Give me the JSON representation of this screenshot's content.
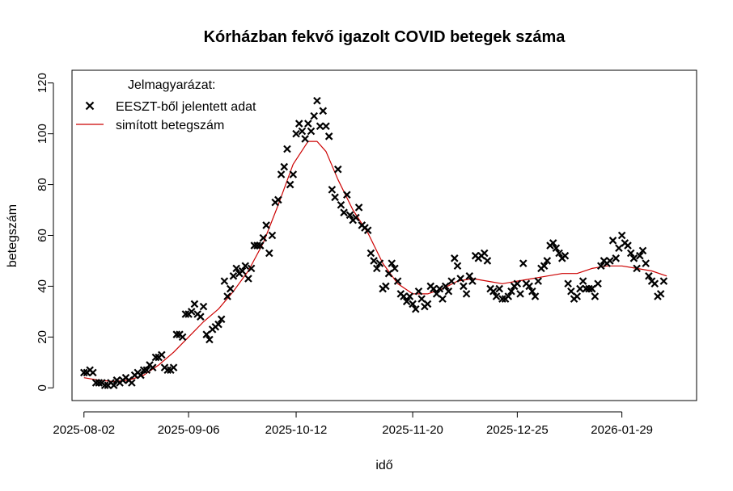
{
  "chart_data": {
    "type": "scatter",
    "title": "Kórházban fekvő igazolt COVID betegek száma",
    "xlabel": "idő",
    "ylabel": "betegszám",
    "x_type": "date",
    "xlim": [
      "2025-07-29",
      "2026-02-23"
    ],
    "ylim": [
      -5,
      125
    ],
    "y_ticks": [
      0,
      20,
      40,
      60,
      80,
      100,
      120
    ],
    "x_ticks": [
      "2025-08-02",
      "2025-09-06",
      "2025-10-12",
      "2025-11-20",
      "2025-12-25",
      "2026-01-29"
    ],
    "grid": false,
    "legend": {
      "title": "Jelmagyarázat:",
      "position": "top-left",
      "entries": [
        {
          "label": "EESZT-ből jelentett adat",
          "marker": "x",
          "color": "#000000"
        },
        {
          "label": "simított betegszám",
          "marker": "line",
          "color": "#cc0000"
        }
      ]
    },
    "series": [
      {
        "name": "EESZT-ből jelentett adat",
        "kind": "points",
        "color": "#000000",
        "marker": "x",
        "points": [
          [
            "2025-08-02",
            6
          ],
          [
            "2025-08-03",
            6
          ],
          [
            "2025-08-04",
            7
          ],
          [
            "2025-08-05",
            6
          ],
          [
            "2025-08-06",
            2
          ],
          [
            "2025-08-07",
            2
          ],
          [
            "2025-08-08",
            2
          ],
          [
            "2025-08-09",
            1
          ],
          [
            "2025-08-10",
            1
          ],
          [
            "2025-08-11",
            2
          ],
          [
            "2025-08-12",
            1
          ],
          [
            "2025-08-13",
            3
          ],
          [
            "2025-08-14",
            2
          ],
          [
            "2025-08-15",
            3
          ],
          [
            "2025-08-16",
            4
          ],
          [
            "2025-08-17",
            3
          ],
          [
            "2025-08-18",
            2
          ],
          [
            "2025-08-19",
            5
          ],
          [
            "2025-08-20",
            6
          ],
          [
            "2025-08-21",
            5
          ],
          [
            "2025-08-22",
            7
          ],
          [
            "2025-08-23",
            7
          ],
          [
            "2025-08-24",
            9
          ],
          [
            "2025-08-25",
            8
          ],
          [
            "2025-08-26",
            12
          ],
          [
            "2025-08-27",
            12
          ],
          [
            "2025-08-28",
            13
          ],
          [
            "2025-08-29",
            8
          ],
          [
            "2025-08-30",
            7
          ],
          [
            "2025-08-31",
            7
          ],
          [
            "2025-09-01",
            8
          ],
          [
            "2025-09-02",
            21
          ],
          [
            "2025-09-03",
            21
          ],
          [
            "2025-09-04",
            20
          ],
          [
            "2025-09-05",
            29
          ],
          [
            "2025-09-06",
            29
          ],
          [
            "2025-09-07",
            30
          ],
          [
            "2025-09-08",
            33
          ],
          [
            "2025-09-09",
            29
          ],
          [
            "2025-09-10",
            28
          ],
          [
            "2025-09-11",
            32
          ],
          [
            "2025-09-12",
            21
          ],
          [
            "2025-09-13",
            19
          ],
          [
            "2025-09-14",
            23
          ],
          [
            "2025-09-15",
            24
          ],
          [
            "2025-09-16",
            25
          ],
          [
            "2025-09-17",
            27
          ],
          [
            "2025-09-18",
            42
          ],
          [
            "2025-09-19",
            36
          ],
          [
            "2025-09-20",
            39
          ],
          [
            "2025-09-21",
            44
          ],
          [
            "2025-09-22",
            47
          ],
          [
            "2025-09-23",
            45
          ],
          [
            "2025-09-24",
            46
          ],
          [
            "2025-09-25",
            48
          ],
          [
            "2025-09-26",
            43
          ],
          [
            "2025-09-27",
            47
          ],
          [
            "2025-09-28",
            56
          ],
          [
            "2025-09-29",
            56
          ],
          [
            "2025-09-30",
            56
          ],
          [
            "2025-10-01",
            59
          ],
          [
            "2025-10-02",
            64
          ],
          [
            "2025-10-03",
            53
          ],
          [
            "2025-10-04",
            60
          ],
          [
            "2025-10-05",
            73
          ],
          [
            "2025-10-06",
            74
          ],
          [
            "2025-10-07",
            84
          ],
          [
            "2025-10-08",
            87
          ],
          [
            "2025-10-09",
            94
          ],
          [
            "2025-10-10",
            80
          ],
          [
            "2025-10-11",
            84
          ],
          [
            "2025-10-12",
            100
          ],
          [
            "2025-10-13",
            104
          ],
          [
            "2025-10-14",
            101
          ],
          [
            "2025-10-15",
            98
          ],
          [
            "2025-10-16",
            104
          ],
          [
            "2025-10-17",
            101
          ],
          [
            "2025-10-18",
            107
          ],
          [
            "2025-10-19",
            113
          ],
          [
            "2025-10-20",
            103
          ],
          [
            "2025-10-21",
            109
          ],
          [
            "2025-10-22",
            103
          ],
          [
            "2025-10-23",
            99
          ],
          [
            "2025-10-24",
            78
          ],
          [
            "2025-10-25",
            75
          ],
          [
            "2025-10-26",
            86
          ],
          [
            "2025-10-27",
            72
          ],
          [
            "2025-10-28",
            69
          ],
          [
            "2025-10-29",
            76
          ],
          [
            "2025-10-30",
            68
          ],
          [
            "2025-10-31",
            66
          ],
          [
            "2025-11-01",
            67
          ],
          [
            "2025-11-02",
            71
          ],
          [
            "2025-11-03",
            64
          ],
          [
            "2025-11-04",
            63
          ],
          [
            "2025-11-05",
            62
          ],
          [
            "2025-11-06",
            53
          ],
          [
            "2025-11-07",
            50
          ],
          [
            "2025-11-08",
            47
          ],
          [
            "2025-11-09",
            49
          ],
          [
            "2025-11-10",
            39
          ],
          [
            "2025-11-11",
            40
          ],
          [
            "2025-11-12",
            45
          ],
          [
            "2025-11-13",
            49
          ],
          [
            "2025-11-14",
            47
          ],
          [
            "2025-11-15",
            42
          ],
          [
            "2025-11-16",
            37
          ],
          [
            "2025-11-17",
            36
          ],
          [
            "2025-11-18",
            34
          ],
          [
            "2025-11-19",
            36
          ],
          [
            "2025-11-20",
            33
          ],
          [
            "2025-11-21",
            31
          ],
          [
            "2025-11-22",
            38
          ],
          [
            "2025-11-23",
            35
          ],
          [
            "2025-11-24",
            32
          ],
          [
            "2025-11-25",
            33
          ],
          [
            "2025-11-26",
            40
          ],
          [
            "2025-11-27",
            39
          ],
          [
            "2025-11-28",
            37
          ],
          [
            "2025-11-29",
            39
          ],
          [
            "2025-11-30",
            35
          ],
          [
            "2025-12-01",
            40
          ],
          [
            "2025-12-02",
            38
          ],
          [
            "2025-12-03",
            42
          ],
          [
            "2025-12-04",
            51
          ],
          [
            "2025-12-05",
            48
          ],
          [
            "2025-12-06",
            43
          ],
          [
            "2025-12-07",
            40
          ],
          [
            "2025-12-08",
            37
          ],
          [
            "2025-12-09",
            44
          ],
          [
            "2025-12-10",
            42
          ],
          [
            "2025-12-11",
            52
          ],
          [
            "2025-12-12",
            51
          ],
          [
            "2025-12-13",
            52
          ],
          [
            "2025-12-14",
            53
          ],
          [
            "2025-12-15",
            50
          ],
          [
            "2025-12-16",
            39
          ],
          [
            "2025-12-17",
            38
          ],
          [
            "2025-12-18",
            36
          ],
          [
            "2025-12-19",
            39
          ],
          [
            "2025-12-20",
            35
          ],
          [
            "2025-12-21",
            35
          ],
          [
            "2025-12-22",
            36
          ],
          [
            "2025-12-23",
            38
          ],
          [
            "2025-12-24",
            40
          ],
          [
            "2025-12-25",
            41
          ],
          [
            "2025-12-26",
            37
          ],
          [
            "2025-12-27",
            49
          ],
          [
            "2025-12-28",
            41
          ],
          [
            "2025-12-29",
            40
          ],
          [
            "2025-12-30",
            38
          ],
          [
            "2025-12-31",
            36
          ],
          [
            "2026-01-01",
            42
          ],
          [
            "2026-01-02",
            47
          ],
          [
            "2026-01-03",
            48
          ],
          [
            "2026-01-04",
            50
          ],
          [
            "2026-01-05",
            56
          ],
          [
            "2026-01-06",
            57
          ],
          [
            "2026-01-07",
            55
          ],
          [
            "2026-01-08",
            53
          ],
          [
            "2026-01-09",
            51
          ],
          [
            "2026-01-10",
            52
          ],
          [
            "2026-01-11",
            41
          ],
          [
            "2026-01-12",
            38
          ],
          [
            "2026-01-13",
            35
          ],
          [
            "2026-01-14",
            36
          ],
          [
            "2026-01-15",
            39
          ],
          [
            "2026-01-16",
            42
          ],
          [
            "2026-01-17",
            39
          ],
          [
            "2026-01-18",
            39
          ],
          [
            "2026-01-19",
            39
          ],
          [
            "2026-01-20",
            36
          ],
          [
            "2026-01-21",
            41
          ],
          [
            "2026-01-22",
            48
          ],
          [
            "2026-01-23",
            50
          ],
          [
            "2026-01-24",
            49
          ],
          [
            "2026-01-25",
            50
          ],
          [
            "2026-01-26",
            58
          ],
          [
            "2026-01-27",
            51
          ],
          [
            "2026-01-28",
            55
          ],
          [
            "2026-01-29",
            60
          ],
          [
            "2026-01-30",
            57
          ],
          [
            "2026-01-31",
            56
          ],
          [
            "2026-02-01",
            53
          ],
          [
            "2026-02-02",
            51
          ],
          [
            "2026-02-03",
            47
          ],
          [
            "2026-02-04",
            52
          ],
          [
            "2026-02-05",
            54
          ],
          [
            "2026-02-06",
            49
          ],
          [
            "2026-02-07",
            44
          ],
          [
            "2026-02-08",
            42
          ],
          [
            "2026-02-09",
            41
          ],
          [
            "2026-02-10",
            36
          ],
          [
            "2026-02-11",
            37
          ],
          [
            "2026-02-12",
            42
          ]
        ]
      },
      {
        "name": "simított betegszám",
        "kind": "line",
        "color": "#cc0000",
        "points": [
          [
            "2025-08-02",
            4
          ],
          [
            "2025-08-07",
            3
          ],
          [
            "2025-08-12",
            2.5
          ],
          [
            "2025-08-17",
            3
          ],
          [
            "2025-08-22",
            5
          ],
          [
            "2025-08-27",
            9
          ],
          [
            "2025-09-01",
            14
          ],
          [
            "2025-09-06",
            20
          ],
          [
            "2025-09-11",
            26
          ],
          [
            "2025-09-16",
            31
          ],
          [
            "2025-09-21",
            38
          ],
          [
            "2025-09-26",
            46
          ],
          [
            "2025-10-01",
            57
          ],
          [
            "2025-10-06",
            72
          ],
          [
            "2025-10-11",
            88
          ],
          [
            "2025-10-16",
            97
          ],
          [
            "2025-10-19",
            97
          ],
          [
            "2025-10-22",
            93
          ],
          [
            "2025-10-26",
            82
          ],
          [
            "2025-10-31",
            70
          ],
          [
            "2025-11-05",
            61
          ],
          [
            "2025-11-10",
            49
          ],
          [
            "2025-11-15",
            41
          ],
          [
            "2025-11-20",
            37
          ],
          [
            "2025-11-25",
            37
          ],
          [
            "2025-11-30",
            39
          ],
          [
            "2025-12-05",
            42
          ],
          [
            "2025-12-10",
            43
          ],
          [
            "2025-12-15",
            42
          ],
          [
            "2025-12-20",
            41
          ],
          [
            "2025-12-25",
            42
          ],
          [
            "2025-12-30",
            43
          ],
          [
            "2026-01-04",
            44
          ],
          [
            "2026-01-09",
            45
          ],
          [
            "2026-01-14",
            45
          ],
          [
            "2026-01-19",
            47
          ],
          [
            "2026-01-24",
            48
          ],
          [
            "2026-01-29",
            48
          ],
          [
            "2026-02-03",
            47
          ],
          [
            "2026-02-08",
            46
          ],
          [
            "2026-02-13",
            44
          ]
        ]
      }
    ]
  }
}
